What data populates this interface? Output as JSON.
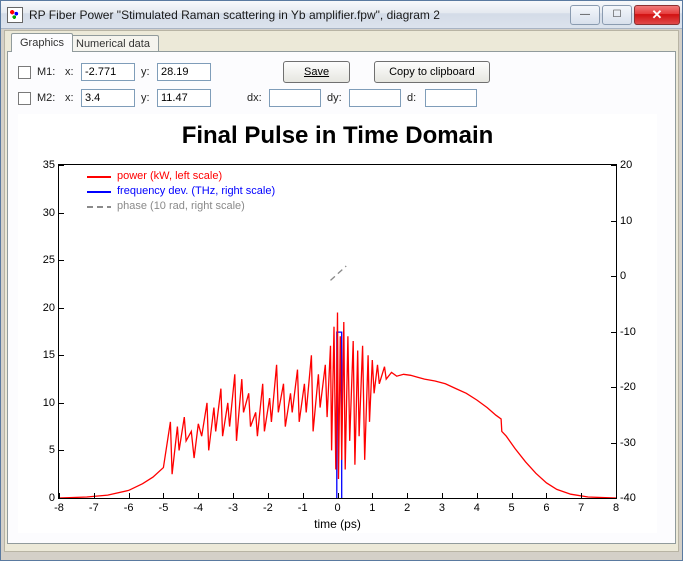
{
  "window": {
    "title": "RP Fiber Power \"Stimulated Raman scattering in Yb amplifier.fpw\", diagram 2"
  },
  "tabs": [
    "Graphics",
    "Numerical data"
  ],
  "active_tab": 0,
  "markers": {
    "m1": {
      "label": "M1:",
      "x_label": "x:",
      "x": "-2.771",
      "y_label": "y:",
      "y": "28.19"
    },
    "m2": {
      "label": "M2:",
      "x_label": "x:",
      "x": "3.4",
      "y_label": "y:",
      "y": "11.47"
    },
    "dx_label": "dx:",
    "dx": "",
    "dy_label": "dy:",
    "dy": "",
    "d_label": "d:",
    "d": ""
  },
  "buttons": {
    "save": "Save",
    "copy": "Copy to clipboard"
  },
  "chart": {
    "title": "Final Pulse in Time Domain",
    "xlabel": "time (ps)",
    "xlim": [
      -8,
      8
    ],
    "xtick_step": 1,
    "yl_lim": [
      0,
      35
    ],
    "yl_tick_step": 5,
    "yr_lim": [
      -40,
      20
    ],
    "yr_tick_step": 10,
    "colors": {
      "power": "#ff0000",
      "freq": "#0000ff",
      "phase": "#8a8a8a",
      "axis": "#000000",
      "bg": "#ffffff"
    },
    "legend": [
      {
        "label": "power (kW, left scale)",
        "color": "#ff0000",
        "dash": ""
      },
      {
        "label": "frequency dev. (THz, right scale)",
        "color": "#0000ff",
        "dash": ""
      },
      {
        "label": "phase (10 rad, right scale)",
        "color": "#8a8a8a",
        "dash": "6,4"
      }
    ],
    "power_points": [
      [
        -8,
        0
      ],
      [
        -7.2,
        0.1
      ],
      [
        -6.6,
        0.3
      ],
      [
        -6.0,
        0.8
      ],
      [
        -5.6,
        1.5
      ],
      [
        -5.3,
        2.2
      ],
      [
        -5.0,
        3.2
      ],
      [
        -4.8,
        8.0
      ],
      [
        -4.75,
        2.5
      ],
      [
        -4.6,
        7.5
      ],
      [
        -4.55,
        5.0
      ],
      [
        -4.4,
        8.5
      ],
      [
        -4.35,
        6.0
      ],
      [
        -4.2,
        7.0
      ],
      [
        -4.12,
        4.2
      ],
      [
        -4.0,
        7.8
      ],
      [
        -3.9,
        6.5
      ],
      [
        -3.75,
        10.0
      ],
      [
        -3.7,
        5.0
      ],
      [
        -3.55,
        9.5
      ],
      [
        -3.5,
        7.0
      ],
      [
        -3.35,
        11.5
      ],
      [
        -3.3,
        6.5
      ],
      [
        -3.15,
        10.0
      ],
      [
        -3.1,
        7.5
      ],
      [
        -2.95,
        13.0
      ],
      [
        -2.9,
        6.0
      ],
      [
        -2.75,
        12.5
      ],
      [
        -2.7,
        9.0
      ],
      [
        -2.55,
        11.0
      ],
      [
        -2.5,
        7.5
      ],
      [
        -2.35,
        9.0
      ],
      [
        -2.3,
        6.5
      ],
      [
        -2.15,
        12.0
      ],
      [
        -2.1,
        7.0
      ],
      [
        -1.95,
        10.5
      ],
      [
        -1.9,
        8.0
      ],
      [
        -1.75,
        14.0
      ],
      [
        -1.7,
        9.0
      ],
      [
        -1.55,
        12.0
      ],
      [
        -1.5,
        7.5
      ],
      [
        -1.35,
        11.0
      ],
      [
        -1.3,
        9.0
      ],
      [
        -1.15,
        13.5
      ],
      [
        -1.1,
        8.0
      ],
      [
        -0.95,
        12.0
      ],
      [
        -0.9,
        9.0
      ],
      [
        -0.75,
        15.0
      ],
      [
        -0.7,
        7.0
      ],
      [
        -0.55,
        13.0
      ],
      [
        -0.5,
        9.5
      ],
      [
        -0.35,
        14.0
      ],
      [
        -0.3,
        8.5
      ],
      [
        -0.2,
        16.0
      ],
      [
        -0.17,
        5.0
      ],
      [
        -0.1,
        18.0
      ],
      [
        -0.05,
        3.0
      ],
      [
        0.0,
        19.5
      ],
      [
        0.03,
        2.0
      ],
      [
        0.08,
        17.0
      ],
      [
        0.12,
        4.0
      ],
      [
        0.18,
        18.5
      ],
      [
        0.22,
        3.0
      ],
      [
        0.3,
        17.0
      ],
      [
        0.35,
        6.0
      ],
      [
        0.45,
        16.5
      ],
      [
        0.5,
        3.5
      ],
      [
        0.58,
        15.5
      ],
      [
        0.62,
        6.5
      ],
      [
        0.72,
        16.0
      ],
      [
        0.78,
        4.0
      ],
      [
        0.88,
        15.0
      ],
      [
        0.92,
        8.0
      ],
      [
        1.0,
        14.5
      ],
      [
        1.05,
        11.0
      ],
      [
        1.15,
        14.0
      ],
      [
        1.2,
        12.0
      ],
      [
        1.35,
        13.8
      ],
      [
        1.4,
        12.5
      ],
      [
        1.55,
        13.2
      ],
      [
        1.7,
        12.8
      ],
      [
        1.9,
        13.0
      ],
      [
        2.1,
        12.9
      ],
      [
        2.3,
        12.7
      ],
      [
        2.5,
        12.5
      ],
      [
        2.8,
        12.3
      ],
      [
        3.1,
        12.0
      ],
      [
        3.4,
        11.5
      ],
      [
        3.7,
        11.0
      ],
      [
        4.0,
        10.3
      ],
      [
        4.3,
        9.5
      ],
      [
        4.55,
        8.7
      ],
      [
        4.7,
        8.3
      ],
      [
        4.72,
        7.0
      ],
      [
        4.85,
        6.5
      ],
      [
        5.1,
        5.2
      ],
      [
        5.4,
        3.8
      ],
      [
        5.7,
        2.6
      ],
      [
        6.0,
        1.6
      ],
      [
        6.3,
        0.9
      ],
      [
        6.7,
        0.4
      ],
      [
        7.2,
        0.1
      ],
      [
        7.8,
        0.02
      ],
      [
        8,
        0
      ]
    ],
    "freq_points": [
      [
        -0.02,
        -40
      ],
      [
        -0.02,
        -10.1
      ],
      [
        0.12,
        -10.1
      ],
      [
        0.12,
        -40
      ]
    ],
    "phase_points": [
      [
        -0.2,
        -0.8
      ],
      [
        0.25,
        1.8
      ]
    ]
  }
}
